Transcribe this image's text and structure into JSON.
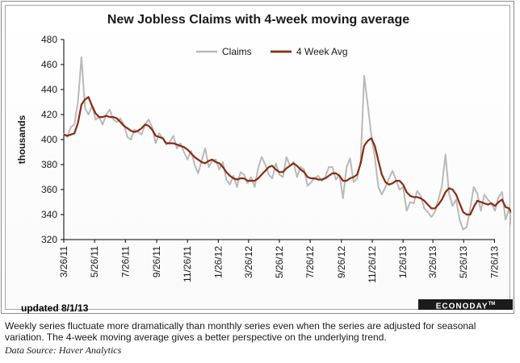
{
  "footer": {
    "updated": "updated 8/1/13",
    "brand": "ECONODAY",
    "brand_mark": "TM",
    "caption": "Weekly series fluctuate more dramatically than monthly series even when the series are adjusted for seasonal variation. The 4-week moving average gives a better perspective on the underlying trend.",
    "source": "Data Source: Haver Analytics"
  },
  "colors": {
    "claims": "#b9b9b9",
    "avg": "#8b2a12"
  },
  "chart_data": {
    "type": "line",
    "title": "New Jobless Claims with 4-week moving average",
    "xlabel": "",
    "ylabel": "thousands",
    "ylim": [
      320,
      480
    ],
    "yticks": [
      320,
      340,
      360,
      380,
      400,
      420,
      440,
      460,
      480
    ],
    "xlim": [
      "3/26/11",
      "7/27/13"
    ],
    "xticks": [
      "3/26/11",
      "5/26/11",
      "7/26/11",
      "9/26/11",
      "11/26/11",
      "1/26/12",
      "3/26/12",
      "5/26/12",
      "7/26/12",
      "9/26/12",
      "11/26/12",
      "1/26/13",
      "3/26/13",
      "5/26/13",
      "7/26/13"
    ],
    "grid": false,
    "legend": "top-right",
    "x_start": "3/26/11",
    "x_step_days": 7,
    "series": [
      {
        "name": "Claims",
        "values": [
          405,
          402,
          410,
          412,
          430,
          466,
          425,
          420,
          427,
          416,
          418,
          412,
          420,
          424,
          416,
          414,
          417,
          412,
          402,
          400,
          408,
          406,
          404,
          412,
          416,
          410,
          397,
          405,
          401,
          396,
          398,
          403,
          393,
          397,
          390,
          384,
          391,
          380,
          373,
          383,
          393,
          378,
          383,
          384,
          376,
          382,
          368,
          364,
          371,
          362,
          374,
          372,
          365,
          370,
          362,
          377,
          386,
          380,
          372,
          369,
          381,
          372,
          370,
          386,
          379,
          382,
          370,
          378,
          376,
          363,
          366,
          369,
          371,
          367,
          370,
          378,
          378,
          368,
          372,
          353,
          378,
          385,
          366,
          369,
          383,
          451,
          428,
          404,
          386,
          362,
          356,
          362,
          369,
          375,
          368,
          360,
          362,
          343,
          350,
          349,
          359,
          355,
          345,
          342,
          338,
          342,
          352,
          363,
          388,
          357,
          347,
          352,
          336,
          328,
          330,
          345,
          362,
          357,
          343,
          356,
          352,
          349,
          343,
          354,
          358,
          336,
          345,
          326
        ]
      },
      {
        "name": "4 Week Avg",
        "values": [
          404,
          403,
          404,
          405,
          413,
          428,
          432,
          434,
          427,
          421,
          418,
          418,
          419,
          418,
          418,
          417,
          414,
          411,
          409,
          407,
          406,
          407,
          409,
          412,
          411,
          408,
          403,
          402,
          401,
          397,
          397,
          397,
          396,
          395,
          394,
          392,
          389,
          386,
          384,
          382,
          381,
          383,
          384,
          382,
          381,
          378,
          374,
          371,
          369,
          368,
          369,
          369,
          367,
          367,
          367,
          369,
          372,
          375,
          378,
          379,
          376,
          374,
          374,
          377,
          379,
          381,
          379,
          376,
          374,
          370,
          369,
          369,
          368,
          368,
          369,
          371,
          373,
          373,
          371,
          367,
          367,
          369,
          370,
          372,
          381,
          395,
          399,
          401,
          395,
          383,
          372,
          366,
          364,
          365,
          367,
          367,
          364,
          358,
          355,
          354,
          354,
          353,
          351,
          348,
          345,
          345,
          348,
          352,
          358,
          361,
          360,
          356,
          349,
          342,
          340,
          340,
          346,
          351,
          350,
          349,
          348,
          349,
          347,
          350,
          352,
          346,
          345,
          340
        ]
      }
    ]
  }
}
